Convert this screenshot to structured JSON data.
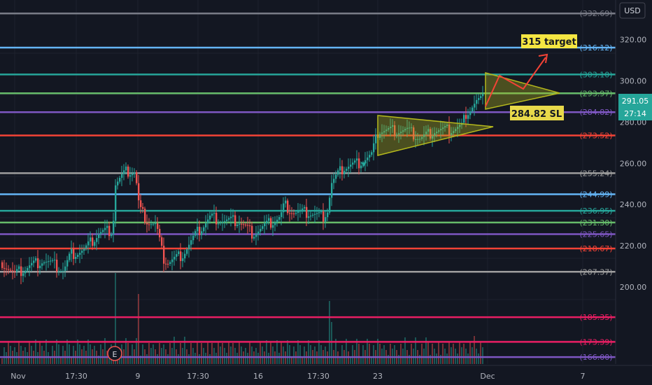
{
  "currency_button": "USD",
  "chart_data": {
    "type": "candlestick",
    "instrument_currency": "USD",
    "y_axis": {
      "ticks": [
        200,
        220,
        240,
        260,
        280,
        300,
        320
      ],
      "range": [
        162,
        335
      ],
      "scale": "linear",
      "position": "right"
    },
    "x_axis": {
      "ticks": [
        "Nov",
        "17:30",
        "9",
        "17:30",
        "16",
        "17:30",
        "23",
        "Dec",
        "7"
      ]
    },
    "grid": true,
    "current_price": "291.05",
    "countdown": "27:14",
    "horizontal_levels": [
      {
        "value": 332.69,
        "label": "(332.69)",
        "color": "#787b86"
      },
      {
        "value": 316.12,
        "label": "(316.12)",
        "color": "#64b5f6"
      },
      {
        "value": 303.1,
        "label": "(303.10)",
        "color": "#26a69a"
      },
      {
        "value": 293.97,
        "label": "(293.97)",
        "color": "#66bb6a"
      },
      {
        "value": 284.82,
        "label": "(284.82)",
        "color": "#7e57c2"
      },
      {
        "value": 273.52,
        "label": "(273.52)",
        "color": "#f44336"
      },
      {
        "value": 255.24,
        "label": "(255.24)",
        "color": "#9e9e9e"
      },
      {
        "value": 244.99,
        "label": "(244.99)",
        "color": "#64b5f6"
      },
      {
        "value": 236.95,
        "label": "(236.95)",
        "color": "#26a69a"
      },
      {
        "value": 231.3,
        "label": "(231.30)",
        "color": "#66bb6a"
      },
      {
        "value": 225.65,
        "label": "(225.65)",
        "color": "#7e57c2"
      },
      {
        "value": 218.67,
        "label": "(218.67)",
        "color": "#f44336"
      },
      {
        "value": 207.37,
        "label": "(207.37)",
        "color": "#9e9e9e"
      },
      {
        "value": 185.35,
        "label": "(185.35)",
        "color": "#e91e63"
      },
      {
        "value": 173.39,
        "label": "(173.39)",
        "color": "#e91e63"
      },
      {
        "value": 166.0,
        "label": "(166.00)",
        "color": "#7e57c2"
      }
    ],
    "annotations": [
      {
        "text": "315 target",
        "bg": "#f5e642",
        "fg": "#131722"
      },
      {
        "text": "284.82 SL",
        "bg": "#e8d94a",
        "fg": "#131722"
      }
    ],
    "event_marker": "E",
    "colors": {
      "up": "#26a69a",
      "down": "#ef5350",
      "background": "#131722",
      "triangle": "#b5b81c"
    }
  }
}
